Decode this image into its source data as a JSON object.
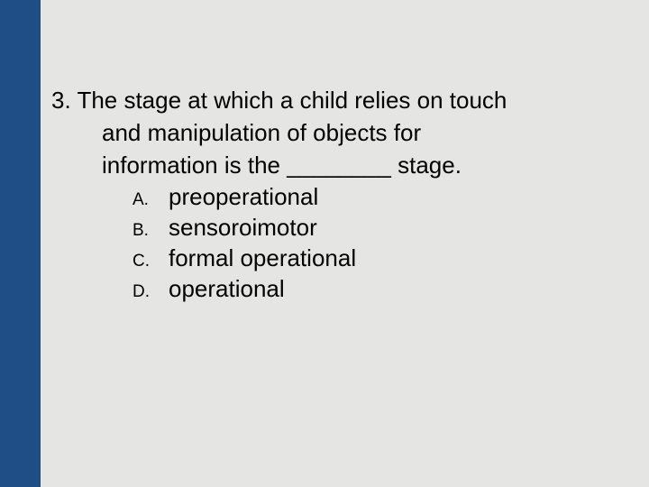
{
  "slide": {
    "background_color": "#e5e5e3",
    "sidebar_color": "#1f4e86",
    "text_color": "#000000",
    "question_number": "3.",
    "question_line1": "3. The stage at which a child relies on touch",
    "question_line2": "and manipulation of objects for",
    "question_line3": "information is the ________ stage.",
    "question_fontsize": 26,
    "option_letter_fontsize": 19,
    "option_text_fontsize": 26,
    "options": [
      {
        "letter": "A.",
        "text": "preoperational"
      },
      {
        "letter": "B.",
        "text": "sensoroimotor"
      },
      {
        "letter": "C.",
        "text": "formal operational"
      },
      {
        "letter": "D.",
        "text": "operational"
      }
    ]
  }
}
